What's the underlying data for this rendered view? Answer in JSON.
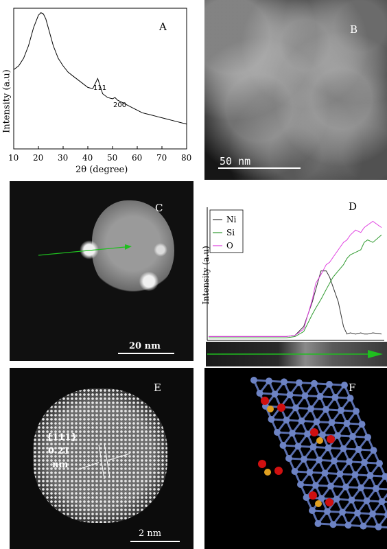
{
  "panels": {
    "A": {
      "label": "A",
      "xlabel": "2θ (degree)",
      "ylabel": "Intensity (a.u)",
      "xticks": [
        "10",
        "20",
        "30",
        "40",
        "50",
        "60",
        "70",
        "80"
      ],
      "peak_labels": [
        "111",
        "200"
      ]
    },
    "B": {
      "label": "B",
      "scale": "50 nm"
    },
    "C": {
      "label": "C",
      "scale": "20 nm"
    },
    "D": {
      "label": "D",
      "ylabel": "Intensity (a.u)",
      "legend": [
        "Ni",
        "Si",
        "O"
      ],
      "colors": {
        "Ni": "#333333",
        "Si": "#2e9a2e",
        "O": "#e040e0"
      }
    },
    "E": {
      "label": "E",
      "scale": "2 nm",
      "annotation_1": "{111}",
      "annotation_2": "0.21",
      "annotation_3": "nm"
    },
    "F": {
      "label": "F"
    }
  },
  "chart_data": [
    {
      "type": "line",
      "panel": "A",
      "xlabel": "2θ (degree)",
      "ylabel": "Intensity (a.u)",
      "xlim": [
        10,
        80
      ],
      "x": [
        10,
        12,
        14,
        16,
        18,
        20,
        21,
        22,
        23,
        24,
        26,
        28,
        30,
        32,
        34,
        36,
        38,
        40,
        42,
        43,
        44,
        45,
        46,
        48,
        50,
        51,
        52,
        54,
        56,
        58,
        60,
        62,
        64,
        66,
        68,
        70,
        72,
        74,
        76,
        78,
        80
      ],
      "y": [
        0.55,
        0.58,
        0.64,
        0.74,
        0.88,
        0.98,
        1.0,
        0.99,
        0.95,
        0.88,
        0.74,
        0.64,
        0.58,
        0.53,
        0.5,
        0.47,
        0.44,
        0.41,
        0.4,
        0.44,
        0.48,
        0.42,
        0.36,
        0.33,
        0.32,
        0.33,
        0.31,
        0.29,
        0.27,
        0.25,
        0.23,
        0.21,
        0.2,
        0.19,
        0.18,
        0.17,
        0.16,
        0.15,
        0.14,
        0.13,
        0.12
      ],
      "annotations": [
        {
          "text": "111",
          "x": 44
        },
        {
          "text": "200",
          "x": 51
        }
      ]
    },
    {
      "type": "line",
      "panel": "D",
      "ylabel": "Intensity (a.u)",
      "x": [
        0,
        0.05,
        0.1,
        0.15,
        0.2,
        0.25,
        0.3,
        0.35,
        0.4,
        0.45,
        0.5,
        0.55,
        0.6,
        0.62,
        0.65,
        0.68,
        0.7,
        0.72,
        0.75,
        0.78,
        0.8,
        0.82,
        0.85,
        0.88,
        0.9,
        0.92,
        0.95,
        1.0
      ],
      "series": [
        {
          "name": "Ni",
          "values": [
            0.02,
            0.02,
            0.02,
            0.02,
            0.02,
            0.02,
            0.02,
            0.02,
            0.02,
            0.02,
            0.03,
            0.1,
            0.3,
            0.4,
            0.55,
            0.55,
            0.5,
            0.42,
            0.3,
            0.1,
            0.04,
            0.05,
            0.04,
            0.05,
            0.04,
            0.04,
            0.05,
            0.04
          ]
        },
        {
          "name": "Si",
          "values": [
            0.01,
            0.01,
            0.01,
            0.01,
            0.01,
            0.01,
            0.01,
            0.01,
            0.01,
            0.01,
            0.02,
            0.06,
            0.2,
            0.25,
            0.32,
            0.4,
            0.45,
            0.5,
            0.55,
            0.6,
            0.65,
            0.68,
            0.7,
            0.72,
            0.78,
            0.8,
            0.78,
            0.84
          ]
        },
        {
          "name": "O",
          "values": [
            0.02,
            0.02,
            0.02,
            0.02,
            0.02,
            0.02,
            0.02,
            0.02,
            0.02,
            0.02,
            0.03,
            0.08,
            0.32,
            0.45,
            0.52,
            0.6,
            0.62,
            0.66,
            0.72,
            0.78,
            0.8,
            0.84,
            0.88,
            0.86,
            0.9,
            0.92,
            0.95,
            0.9
          ]
        }
      ]
    }
  ]
}
